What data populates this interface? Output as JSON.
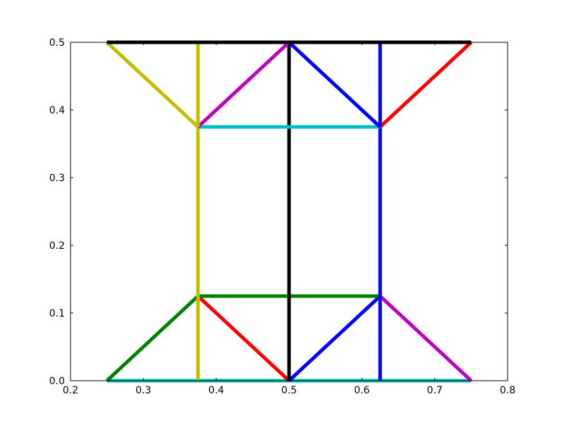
{
  "chart_data": {
    "type": "line",
    "title": "",
    "xlabel": "",
    "ylabel": "",
    "xlim": [
      0.2,
      0.8
    ],
    "ylim": [
      0.0,
      0.5
    ],
    "grid": false,
    "x_ticks": [
      0.2,
      0.3,
      0.4,
      0.5,
      0.6,
      0.7,
      0.8
    ],
    "x_tick_labels": [
      "0.2",
      "0.3",
      "0.4",
      "0.5",
      "0.6",
      "0.7",
      "0.8"
    ],
    "y_ticks": [
      0.0,
      0.1,
      0.2,
      0.3,
      0.4,
      0.5
    ],
    "y_tick_labels": [
      "0.0",
      "0.1",
      "0.2",
      "0.3",
      "0.4",
      "0.5"
    ],
    "series": [
      {
        "color": "#00bfbf",
        "x": [
          0.25,
          0.75
        ],
        "y": [
          0.0,
          0.0
        ]
      },
      {
        "color": "#008000",
        "x": [
          0.25,
          0.375
        ],
        "y": [
          0.0,
          0.125
        ]
      },
      {
        "color": "#ff0000",
        "x": [
          0.375,
          0.5
        ],
        "y": [
          0.125,
          0.0
        ]
      },
      {
        "color": "#0000ff",
        "x": [
          0.5,
          0.625
        ],
        "y": [
          0.0,
          0.125
        ]
      },
      {
        "color": "#bf00bf",
        "x": [
          0.625,
          0.75
        ],
        "y": [
          0.125,
          0.0
        ]
      },
      {
        "color": "#008000",
        "x": [
          0.375,
          0.625
        ],
        "y": [
          0.125,
          0.125
        ]
      },
      {
        "color": "#bfbf00",
        "x": [
          0.375,
          0.375
        ],
        "y": [
          0.0,
          0.375
        ]
      },
      {
        "color": "#0000ff",
        "x": [
          0.625,
          0.625
        ],
        "y": [
          0.0,
          0.375
        ]
      },
      {
        "color": "#000000",
        "x": [
          0.5,
          0.5
        ],
        "y": [
          0.0,
          0.5
        ]
      },
      {
        "color": "#00bfbf",
        "x": [
          0.375,
          0.625
        ],
        "y": [
          0.375,
          0.375
        ]
      },
      {
        "color": "#bfbf00",
        "x": [
          0.25,
          0.375
        ],
        "y": [
          0.5,
          0.375
        ]
      },
      {
        "color": "#bf00bf",
        "x": [
          0.375,
          0.5
        ],
        "y": [
          0.375,
          0.5
        ]
      },
      {
        "color": "#0000ff",
        "x": [
          0.5,
          0.625
        ],
        "y": [
          0.5,
          0.375
        ]
      },
      {
        "color": "#ff0000",
        "x": [
          0.625,
          0.75
        ],
        "y": [
          0.375,
          0.5
        ]
      },
      {
        "color": "#bfbf00",
        "x": [
          0.375,
          0.375
        ],
        "y": [
          0.375,
          0.5
        ]
      },
      {
        "color": "#0000ff",
        "x": [
          0.625,
          0.625
        ],
        "y": [
          0.375,
          0.5
        ]
      },
      {
        "color": "#000000",
        "x": [
          0.25,
          0.75
        ],
        "y": [
          0.5,
          0.5
        ]
      }
    ]
  }
}
